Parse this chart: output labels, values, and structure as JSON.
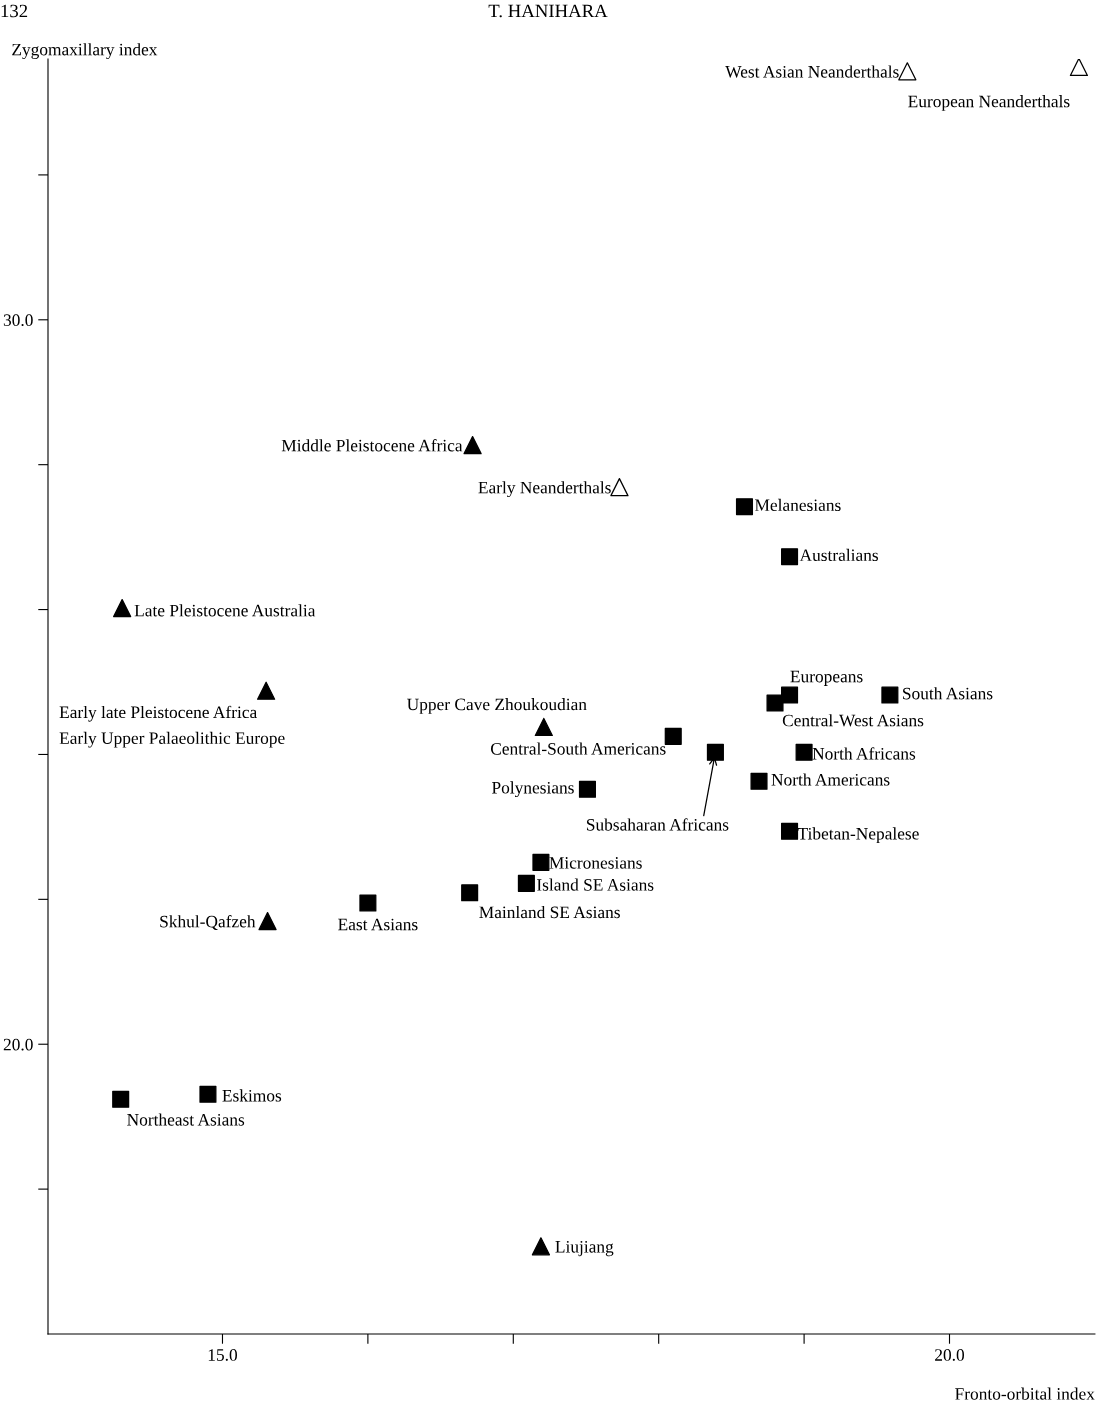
{
  "chart_data": {
    "type": "scatter",
    "xlabel": "Fronto-orbital index",
    "ylabel": "Zygomaxillary index",
    "xlim": [
      13.8,
      21.0
    ],
    "ylim": [
      16.0,
      33.6
    ],
    "xticks": [
      {
        "value": 15,
        "label": "15.0"
      },
      {
        "value": 16,
        "label": null
      },
      {
        "value": 17,
        "label": null
      },
      {
        "value": 18,
        "label": null
      },
      {
        "value": 19,
        "label": null
      },
      {
        "value": 20,
        "label": "20.0"
      }
    ],
    "yticks": [
      {
        "value": 18,
        "label": null
      },
      {
        "value": 20,
        "label": "20.0"
      },
      {
        "value": 22,
        "label": null
      },
      {
        "value": 24,
        "label": null
      },
      {
        "value": 26,
        "label": null
      },
      {
        "value": 28,
        "label": null
      },
      {
        "value": 30,
        "label": "30.0"
      },
      {
        "value": 32,
        "label": null
      }
    ],
    "grid": false,
    "series": [
      {
        "color": "#000000",
        "marker": "square",
        "x": [
          18.59,
          18.9,
          18.9,
          18.8,
          19.59,
          19.0,
          18.69,
          18.9,
          18.39,
          18.1,
          17.51,
          17.19,
          17.09,
          16.7,
          16.0,
          14.9,
          14.3
        ],
        "values": [
          27.42,
          26.73,
          24.82,
          24.71,
          24.82,
          24.03,
          23.63,
          22.94,
          24.03,
          24.25,
          23.52,
          22.51,
          22.22,
          22.09,
          21.95,
          19.31,
          19.24
        ]
      },
      {
        "color": "#000000",
        "marker": "triangle",
        "x": [
          16.72,
          14.31,
          15.3,
          17.21,
          15.31,
          17.19
        ],
        "values": [
          28.27,
          26.02,
          24.88,
          24.38,
          21.7,
          17.21
        ]
      },
      {
        "color": "#000000",
        "marker": "triangle",
        "x": [
          17.73,
          19.71,
          20.89
        ],
        "values": [
          27.69,
          33.43,
          33.49
        ]
      }
    ],
    "annotations": [
      {
        "text": "Melanesians",
        "x": 18.59,
        "y": 27.42
      },
      {
        "text": "Australians",
        "x": 18.9,
        "y": 26.73
      },
      {
        "text": "Europeans",
        "x": 18.9,
        "y": 24.82
      },
      {
        "text": "Central-West Asians",
        "x": 18.8,
        "y": 24.71
      },
      {
        "text": "South Asians",
        "x": 19.59,
        "y": 24.82
      },
      {
        "text": "North Africans",
        "x": 19.0,
        "y": 24.03
      },
      {
        "text": "North Americans",
        "x": 18.69,
        "y": 23.63
      },
      {
        "text": "Tibetan-Nepalese",
        "x": 18.9,
        "y": 22.94
      },
      {
        "text": "Subsaharan Africans",
        "x": 18.39,
        "y": 24.03
      },
      {
        "text": "Central-South Americans",
        "x": 18.1,
        "y": 24.25
      },
      {
        "text": "Polynesians",
        "x": 17.51,
        "y": 23.52
      },
      {
        "text": "Micronesians",
        "x": 17.19,
        "y": 22.51
      },
      {
        "text": "Island SE Asians",
        "x": 17.09,
        "y": 22.22
      },
      {
        "text": "Mainland SE Asians",
        "x": 16.7,
        "y": 22.09
      },
      {
        "text": "East Asians",
        "x": 16.0,
        "y": 21.95
      },
      {
        "text": "Eskimos",
        "x": 14.9,
        "y": 19.31
      },
      {
        "text": "Northeast Asians",
        "x": 14.3,
        "y": 19.24
      },
      {
        "text": "Middle Pleistocene Africa",
        "x": 16.72,
        "y": 28.27
      },
      {
        "text": "Late Pleistocene Australia",
        "x": 14.31,
        "y": 26.02
      },
      {
        "text": "Early late Pleistocene Africa",
        "x": 15.3,
        "y": 24.88
      },
      {
        "text": "Early Upper Palaeolithic Europe",
        "x": 15.3,
        "y": 24.88
      },
      {
        "text": "Upper Cave Zhoukoudian",
        "x": 17.21,
        "y": 24.38
      },
      {
        "text": "Skhul-Qafzeh",
        "x": 15.31,
        "y": 21.7
      },
      {
        "text": "Liujiang",
        "x": 17.19,
        "y": 17.21
      },
      {
        "text": "Early Neanderthals",
        "x": 17.73,
        "y": 27.69
      },
      {
        "text": "West Asian Neanderthals",
        "x": 19.71,
        "y": 33.43
      },
      {
        "text": "European Neanderthals",
        "x": 20.89,
        "y": 33.49
      },
      "132",
      "T. HANIHARA"
    ]
  }
}
